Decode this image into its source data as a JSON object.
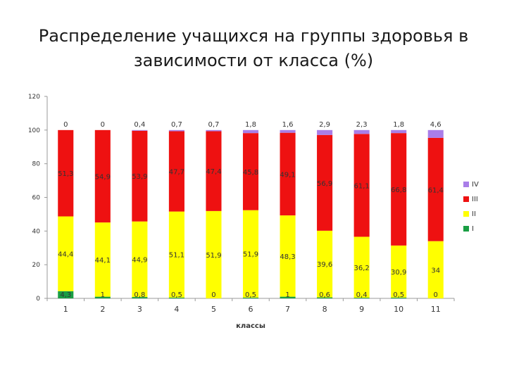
{
  "title_line1": "Распределение учащихся на группы здоровья в",
  "title_line2": "зависимости от класса (%)",
  "chart_data": {
    "type": "bar",
    "stacked": true,
    "categories": [
      "1",
      "2",
      "3",
      "4",
      "5",
      "6",
      "7",
      "8",
      "9",
      "10",
      "11"
    ],
    "series": [
      {
        "name": "I",
        "color": "#1a9e44",
        "values": [
          4.3,
          1,
          0.8,
          0.5,
          0,
          0.5,
          1,
          0.6,
          0.4,
          0.5,
          0
        ],
        "labels": [
          "4,3",
          "1",
          "0,8",
          "0,5",
          "0",
          "0,5",
          "1",
          "0,6",
          "0,4",
          "0,5",
          "0"
        ]
      },
      {
        "name": "II",
        "color": "#ffff00",
        "values": [
          44.4,
          44.1,
          44.9,
          51.1,
          51.9,
          51.9,
          48.3,
          39.6,
          36.2,
          30.9,
          34
        ],
        "labels": [
          "44,4",
          "44,1",
          "44,9",
          "51,1",
          "51,9",
          "51,9",
          "48,3",
          "39,6",
          "36,2",
          "30,9",
          "34"
        ]
      },
      {
        "name": "III",
        "color": "#ee1111",
        "values": [
          51.3,
          54.9,
          53.9,
          47.7,
          47.4,
          45.8,
          49.1,
          56.9,
          61.1,
          66.8,
          61.4
        ],
        "labels": [
          "51,3",
          "54,9",
          "53,9",
          "47,7",
          "47,4",
          "45,8",
          "49,1",
          "56,9",
          "61,1",
          "66,8",
          "61,4"
        ]
      },
      {
        "name": "IV",
        "color": "#a97ee8",
        "values": [
          0,
          0,
          0.4,
          0.7,
          0.7,
          1.8,
          1.6,
          2.9,
          2.3,
          1.8,
          4.6
        ],
        "labels": [
          "0",
          "0",
          "0,4",
          "0,7",
          "0,7",
          "1,8",
          "1,6",
          "2,9",
          "2,3",
          "1,8",
          "4,6"
        ]
      }
    ],
    "xlabel": "классы",
    "ylabel": "",
    "ylim": [
      0,
      120
    ],
    "yticks": [
      0,
      20,
      40,
      60,
      80,
      100,
      120
    ],
    "grid": false,
    "legend": "right"
  }
}
